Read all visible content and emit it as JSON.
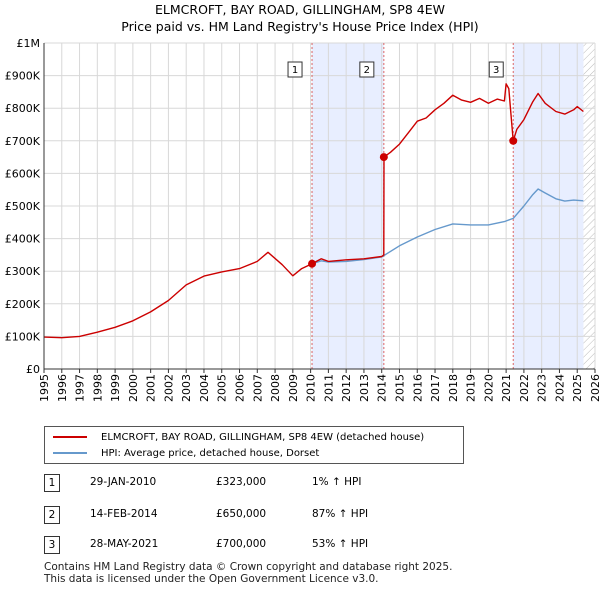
{
  "chart_data": {
    "type": "line",
    "title": "ELMCROFT, BAY ROAD, GILLINGHAM, SP8 4EW",
    "subtitle": "Price paid vs. HM Land Registry's House Price Index (HPI)",
    "xlim": [
      1995,
      2026
    ],
    "ylim": [
      0,
      1000000
    ],
    "x_ticks": [
      "1995",
      "1996",
      "1997",
      "1998",
      "1999",
      "2000",
      "2001",
      "2002",
      "2003",
      "2004",
      "2005",
      "2006",
      "2007",
      "2008",
      "2009",
      "2010",
      "2011",
      "2012",
      "2013",
      "2014",
      "2015",
      "2016",
      "2017",
      "2018",
      "2019",
      "2020",
      "2021",
      "2022",
      "2023",
      "2024",
      "2025",
      "2026"
    ],
    "y_ticks": [
      {
        "value": 0,
        "label": "£0"
      },
      {
        "value": 100000,
        "label": "£100K"
      },
      {
        "value": 200000,
        "label": "£200K"
      },
      {
        "value": 300000,
        "label": "£300K"
      },
      {
        "value": 400000,
        "label": "£400K"
      },
      {
        "value": 500000,
        "label": "£500K"
      },
      {
        "value": 600000,
        "label": "£600K"
      },
      {
        "value": 700000,
        "label": "£700K"
      },
      {
        "value": 800000,
        "label": "£800K"
      },
      {
        "value": 900000,
        "label": "£900K"
      },
      {
        "value": 1000000,
        "label": "£1M"
      }
    ],
    "grid": true,
    "shaded_ranges": [
      [
        2010.08,
        2014.12
      ],
      [
        2021.4,
        2025.35
      ]
    ],
    "projection_start": 2025.35,
    "series": [
      {
        "name": "ELMCROFT, BAY ROAD, GILLINGHAM, SP8 4EW (detached house)",
        "color": "#cc0000",
        "x": [
          1995.0,
          1996.0,
          1997.0,
          1998.0,
          1999.0,
          2000.0,
          2001.0,
          2002.0,
          2003.0,
          2004.0,
          2005.0,
          2006.0,
          2007.0,
          2007.6,
          2008.4,
          2009.0,
          2009.5,
          2010.08,
          2010.6,
          2011.0,
          2012.0,
          2013.0,
          2014.0,
          2014.12,
          2014.13,
          2014.5,
          2015.0,
          2015.5,
          2016.0,
          2016.5,
          2017.0,
          2017.5,
          2018.0,
          2018.5,
          2019.0,
          2019.5,
          2020.0,
          2020.5,
          2020.9,
          2021.0,
          2021.15,
          2021.4,
          2021.6,
          2022.0,
          2022.5,
          2022.8,
          2023.2,
          2023.8,
          2024.3,
          2024.8,
          2025.0,
          2025.35
        ],
        "values": [
          98000,
          96000,
          100000,
          113000,
          128000,
          148000,
          175000,
          210000,
          258000,
          285000,
          298000,
          308000,
          330000,
          358000,
          320000,
          286000,
          308000,
          323000,
          338000,
          330000,
          335000,
          338000,
          345000,
          350000,
          650000,
          665000,
          690000,
          725000,
          760000,
          770000,
          795000,
          815000,
          840000,
          825000,
          818000,
          830000,
          815000,
          828000,
          822000,
          875000,
          860000,
          700000,
          735000,
          765000,
          820000,
          845000,
          815000,
          790000,
          782000,
          795000,
          805000,
          790000
        ]
      },
      {
        "name": "HPI: Average price, detached house, Dorset",
        "color": "#6699cc",
        "x": [
          2010.08,
          2010.6,
          2011.0,
          2012.0,
          2013.0,
          2014.0,
          2014.12,
          2015.0,
          2016.0,
          2017.0,
          2018.0,
          2019.0,
          2020.0,
          2020.9,
          2021.4,
          2022.0,
          2022.5,
          2022.8,
          2023.2,
          2023.8,
          2024.3,
          2024.8,
          2025.35
        ],
        "values": [
          323000,
          332000,
          328000,
          330000,
          336000,
          344000,
          348000,
          378000,
          405000,
          428000,
          445000,
          442000,
          442000,
          452000,
          462000,
          500000,
          535000,
          552000,
          540000,
          522000,
          515000,
          518000,
          516000
        ]
      }
    ],
    "sales": [
      {
        "marker": "1",
        "x": 2010.08,
        "price": 323000
      },
      {
        "marker": "2",
        "x": 2014.12,
        "price": 650000
      },
      {
        "marker": "3",
        "x": 2021.4,
        "price": 700000
      }
    ]
  },
  "legend": {
    "property": "ELMCROFT, BAY ROAD, GILLINGHAM, SP8 4EW (detached house)",
    "hpi": "HPI: Average price, detached house, Dorset"
  },
  "transactions": [
    {
      "num": "1",
      "date": "29-JAN-2010",
      "price": "£323,000",
      "hpi": "1% ↑ HPI"
    },
    {
      "num": "2",
      "date": "14-FEB-2014",
      "price": "£650,000",
      "hpi": "87% ↑ HPI"
    },
    {
      "num": "3",
      "date": "28-MAY-2021",
      "price": "£700,000",
      "hpi": "53% ↑ HPI"
    }
  ],
  "footer": {
    "line1": "Contains HM Land Registry data © Crown copyright and database right 2025.",
    "line2": "This data is licensed under the Open Government Licence v3.0."
  },
  "colors": {
    "property": "#cc0000",
    "hpi": "#6699cc",
    "shade": "#e8eeff",
    "grid": "#d8d8d8"
  }
}
